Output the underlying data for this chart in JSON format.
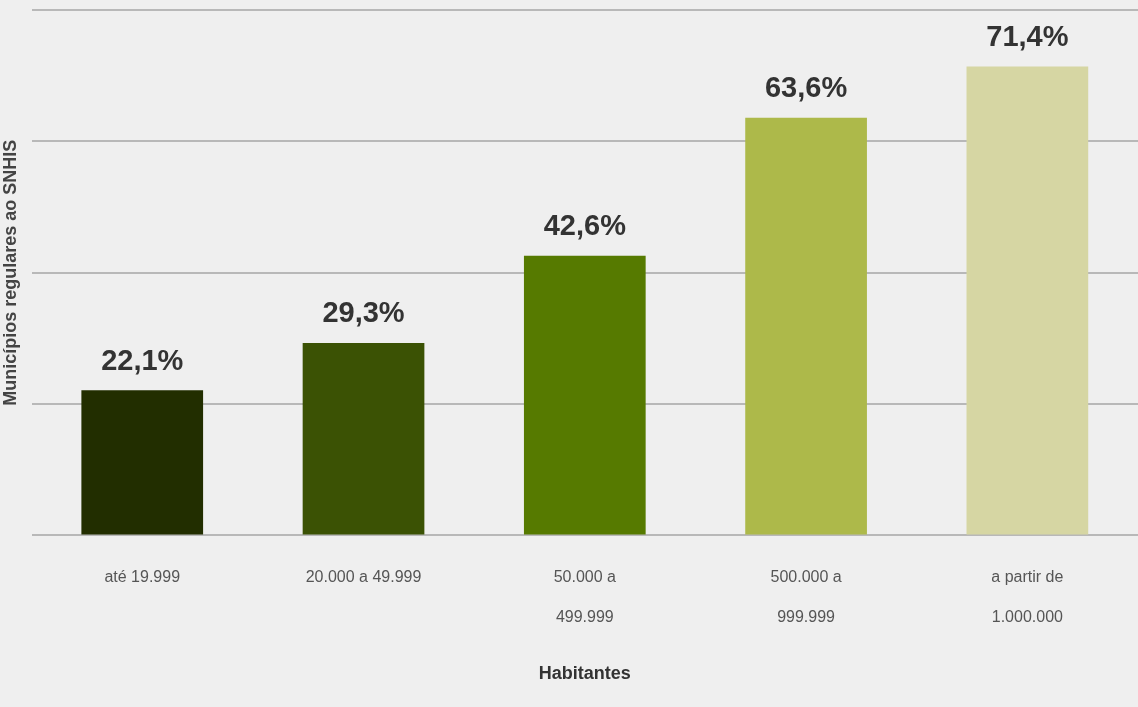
{
  "chart_data": {
    "type": "bar",
    "ylabel": "Municípios regulares ao SNHIS",
    "xlabel": "Habitantes",
    "categories": [
      "até 19.999",
      "20.000 a 49.999",
      "50.000 a\n499.999",
      "500.000 a\n999.999",
      "a partir de\n1.000.000"
    ],
    "values": [
      22.1,
      29.3,
      42.6,
      63.6,
      71.4
    ],
    "value_labels": [
      "22,1%",
      "29,3%",
      "42,6%",
      "63,6%",
      "71,4%"
    ],
    "colors": [
      "#222e00",
      "#3b5204",
      "#567a00",
      "#adb94a",
      "#d6d6a3"
    ],
    "ylim": [
      0,
      80
    ],
    "yticks": [
      {
        "value": 0,
        "label": null
      },
      {
        "value": 20,
        "label": null
      },
      {
        "value": 40,
        "label": null
      },
      {
        "value": 60,
        "label": null
      },
      {
        "value": 80,
        "label": null
      }
    ],
    "tick_labels": "x",
    "grid": "y",
    "legend": false
  }
}
